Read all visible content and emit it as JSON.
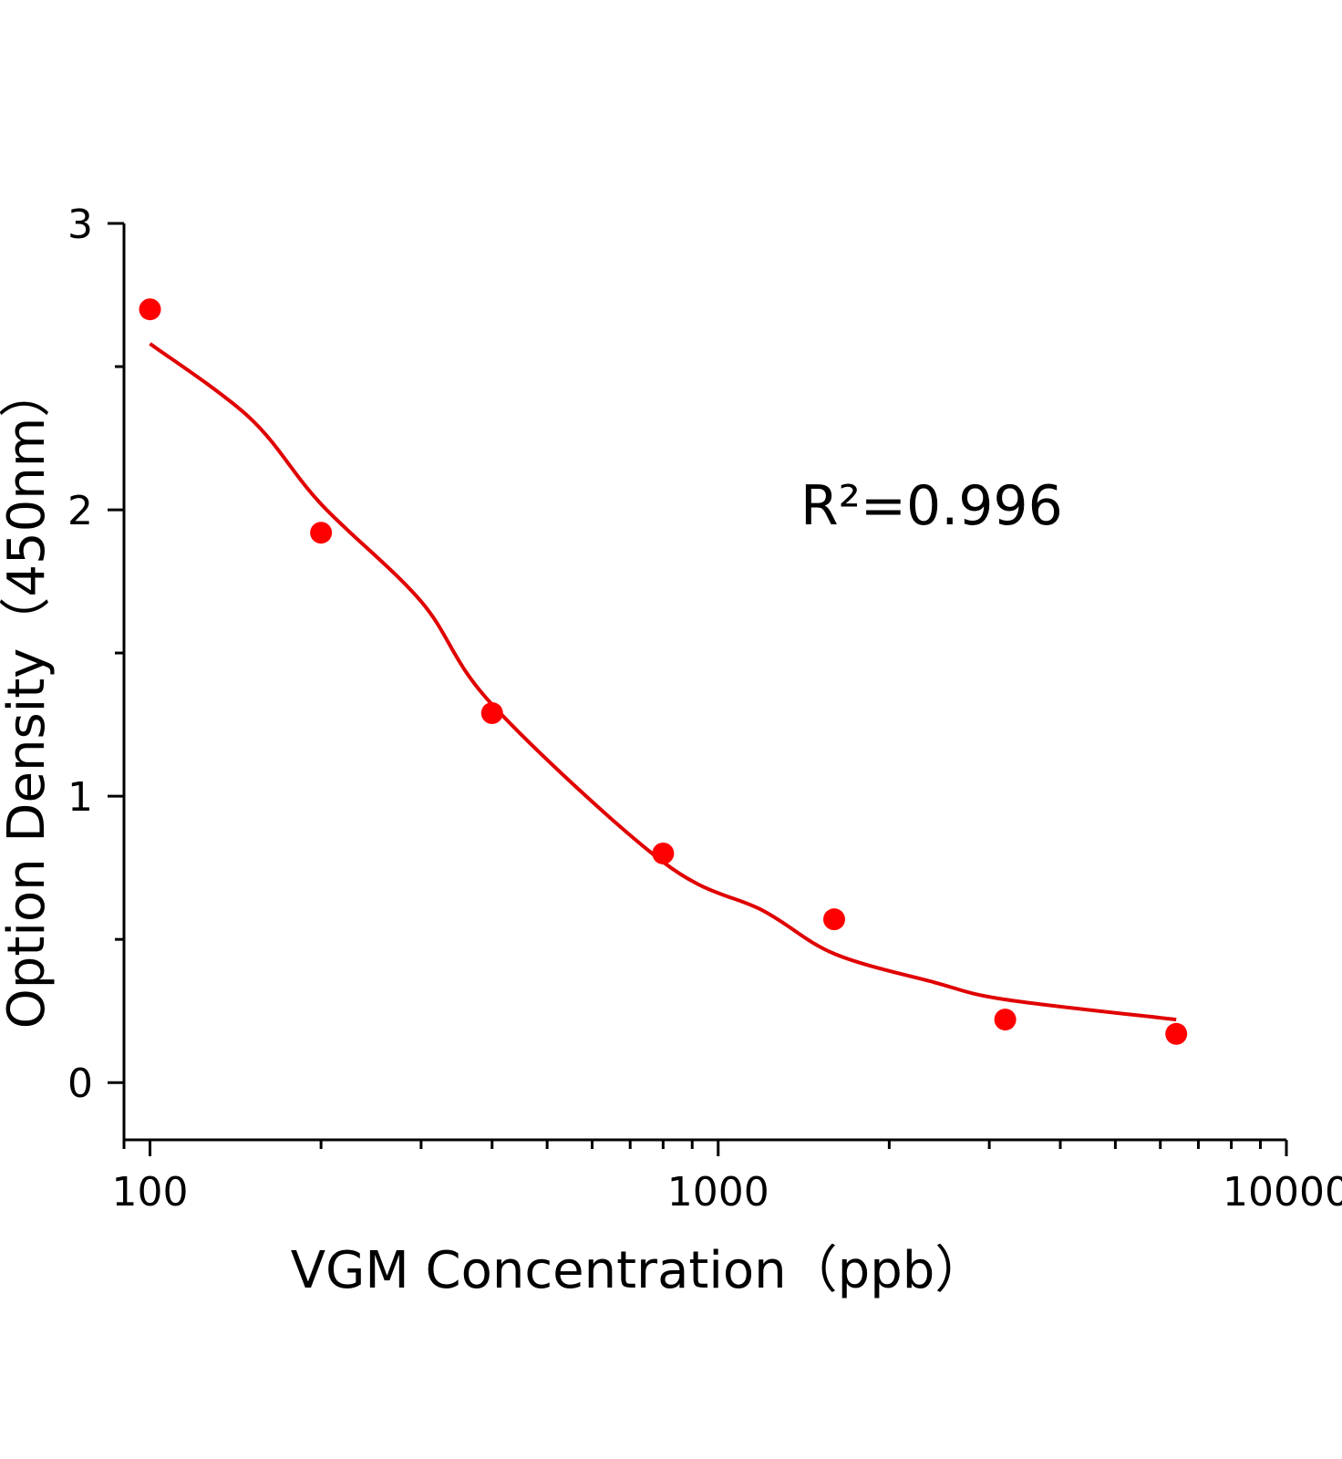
{
  "chart_data": {
    "type": "scatter",
    "x_label": "VGM Concentration（ppb）",
    "y_label": "Option Density（450nm）",
    "annotation": "R²=0.996",
    "xscale": "log",
    "xlim": [
      90,
      10000
    ],
    "xticks": [
      100,
      1000,
      10000
    ],
    "ylim": [
      -0.2,
      3
    ],
    "yticks": [
      0,
      1,
      2,
      3
    ],
    "series": [
      {
        "type": "scatter",
        "color": "#ff0000",
        "x": [
          100,
          200,
          400,
          800,
          1600,
          3200,
          6400
        ],
        "values": [
          2.7,
          1.92,
          1.29,
          0.8,
          0.57,
          0.22,
          0.17
        ]
      },
      {
        "type": "line",
        "color": "#e00000",
        "x": [
          100,
          150,
          200,
          300,
          400,
          800,
          1200,
          1600,
          2400,
          3200,
          6400
        ],
        "values": [
          2.58,
          2.32,
          2.02,
          1.68,
          1.32,
          0.77,
          0.6,
          0.45,
          0.35,
          0.29,
          0.22
        ]
      }
    ]
  }
}
